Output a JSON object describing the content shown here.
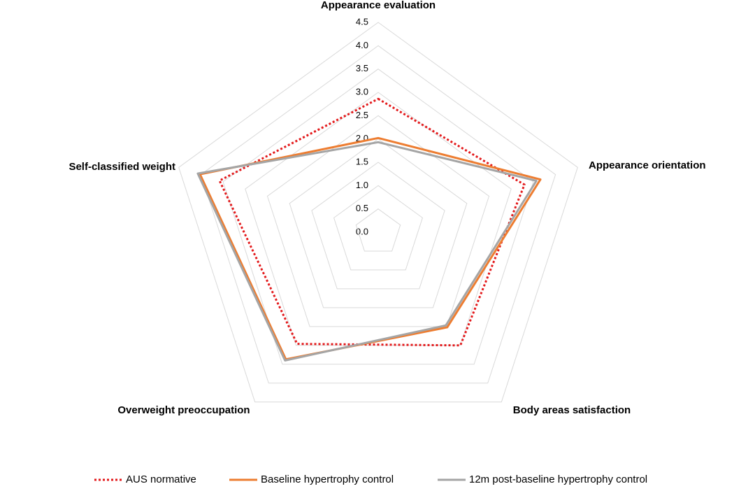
{
  "chart_data": {
    "type": "radar",
    "categories": [
      "Appearance evaluation",
      "Appearance orientation",
      "Body areas satisfaction",
      "Overweight preoccupation",
      "Self-classified weight"
    ],
    "series": [
      {
        "name": "AUS normative",
        "color": "#e31a1c",
        "dash": "dotted",
        "values": [
          2.86,
          3.3,
          3.0,
          2.96,
          3.58
        ]
      },
      {
        "name": "Baseline hypertrophy control",
        "color": "#ed7d31",
        "dash": "solid",
        "values": [
          2.02,
          3.66,
          2.52,
          3.37,
          4.02
        ]
      },
      {
        "name": "12m post-baseline hypertrophy control",
        "color": "#a5a5a5",
        "dash": "solid",
        "values": [
          1.93,
          3.57,
          2.47,
          3.4,
          4.07
        ]
      }
    ],
    "rlim": [
      0,
      4.5
    ],
    "rticks": [
      {
        "value": 0,
        "label": "0.0"
      },
      0.5,
      {
        "value": 1,
        "label": "1.0"
      },
      1.5,
      {
        "value": 2,
        "label": "2.0"
      },
      2.5,
      {
        "value": 3,
        "label": "3.0"
      },
      3.5,
      {
        "value": 4,
        "label": "4.0"
      },
      4.5
    ],
    "grid": true,
    "legend": "bottom"
  }
}
